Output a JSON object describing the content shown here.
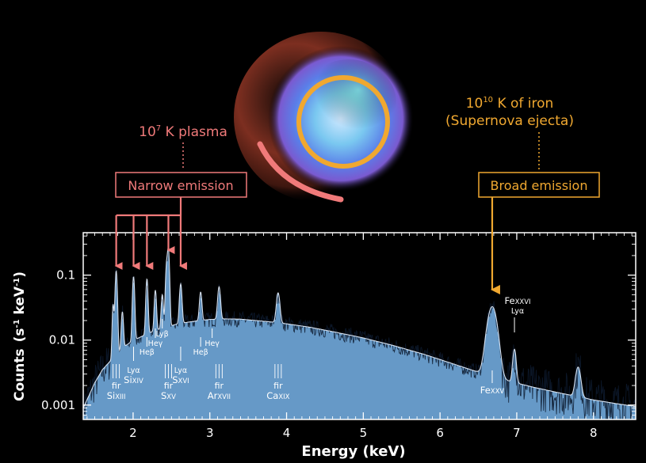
{
  "annotations": {
    "plasma_label": "10",
    "plasma_exp": "7",
    "plasma_rest": " K plasma",
    "iron_label": "10",
    "iron_exp": "10",
    "iron_rest": " K of iron",
    "iron_sub": "(Supernova ejecta)",
    "narrow_box": "Narrow emission",
    "broad_box": "Broad emission"
  },
  "colors": {
    "narrow": "#f07a7a",
    "broad": "#f0a830",
    "spectrum_fill": "#6fa6d8",
    "background": "#000000"
  },
  "chart_data": {
    "type": "area",
    "xlabel": "Energy (keV)",
    "ylabel_main": "Counts",
    "ylabel_units": "(s",
    "ylabel_units_exp1": "-1",
    "ylabel_units_mid": " keV",
    "ylabel_units_exp2": "-1",
    "ylabel_units_end": ")",
    "xlim": [
      1.35,
      8.55
    ],
    "ylim": [
      0.0006,
      0.45
    ],
    "yscale": "log",
    "x_ticks": [
      2,
      3,
      4,
      5,
      6,
      7,
      8
    ],
    "y_ticks": [
      {
        "value": 0.001,
        "label": "0.001"
      },
      {
        "value": 0.01,
        "label": "0.01"
      },
      {
        "value": 0.1,
        "label": "0.1"
      }
    ],
    "continuum": [
      [
        1.35,
        0.0009
      ],
      [
        1.5,
        0.0022
      ],
      [
        1.6,
        0.0035
      ],
      [
        1.75,
        0.0055
      ],
      [
        1.9,
        0.0082
      ],
      [
        2.0,
        0.0098
      ],
      [
        2.2,
        0.0128
      ],
      [
        2.4,
        0.0155
      ],
      [
        2.6,
        0.018
      ],
      [
        2.8,
        0.0195
      ],
      [
        3.0,
        0.0208
      ],
      [
        3.2,
        0.0212
      ],
      [
        3.4,
        0.021
      ],
      [
        3.6,
        0.02
      ],
      [
        3.8,
        0.019
      ],
      [
        4.0,
        0.0178
      ],
      [
        4.3,
        0.0158
      ],
      [
        4.6,
        0.0135
      ],
      [
        5.0,
        0.0108
      ],
      [
        5.4,
        0.0082
      ],
      [
        5.8,
        0.006
      ],
      [
        6.2,
        0.0042
      ],
      [
        6.5,
        0.0032
      ],
      [
        6.8,
        0.0025
      ],
      [
        7.2,
        0.0019
      ],
      [
        7.6,
        0.0015
      ],
      [
        8.0,
        0.0012
      ],
      [
        8.3,
        0.00105
      ],
      [
        8.55,
        0.00095
      ]
    ],
    "lines": [
      {
        "e": 1.74,
        "peak": 0.03,
        "w": 0.01
      },
      {
        "e": 1.78,
        "peak": 0.11,
        "w": 0.012
      },
      {
        "e": 1.86,
        "peak": 0.02,
        "w": 0.012
      },
      {
        "e": 2.006,
        "peak": 0.085,
        "w": 0.012
      },
      {
        "e": 2.18,
        "peak": 0.075,
        "w": 0.012
      },
      {
        "e": 2.29,
        "peak": 0.045,
        "w": 0.012
      },
      {
        "e": 2.38,
        "peak": 0.035,
        "w": 0.012
      },
      {
        "e": 2.435,
        "peak": 0.12,
        "w": 0.012
      },
      {
        "e": 2.46,
        "peak": 0.23,
        "w": 0.012
      },
      {
        "e": 2.62,
        "peak": 0.055,
        "w": 0.014
      },
      {
        "e": 2.88,
        "peak": 0.035,
        "w": 0.014
      },
      {
        "e": 3.12,
        "peak": 0.045,
        "w": 0.016
      },
      {
        "e": 3.89,
        "peak": 0.035,
        "w": 0.02
      },
      {
        "e": 6.68,
        "peak": 0.03,
        "w": 0.055
      },
      {
        "e": 6.97,
        "peak": 0.005,
        "w": 0.02
      },
      {
        "e": 7.8,
        "peak": 0.0025,
        "w": 0.03
      }
    ],
    "line_labels": [
      {
        "id": "si-xiii",
        "x": 1.78,
        "fir": true,
        "name": "Si",
        "ion": "XIII",
        "tier": "low"
      },
      {
        "id": "si-xiv",
        "x": 2.006,
        "tag": "Lyα",
        "name": "Si",
        "ion": "XIV",
        "tier": "mid"
      },
      {
        "id": "si-heb",
        "x": 2.18,
        "tag": "Heβ",
        "tier": "mid2"
      },
      {
        "id": "si-hey",
        "x": 2.29,
        "tag": "Heγ",
        "tier": "high"
      },
      {
        "id": "si-lyb",
        "x": 2.38,
        "tag": "Lyβ",
        "tier": "top"
      },
      {
        "id": "s-xv",
        "x": 2.46,
        "fir": true,
        "name": "S",
        "ion": "XV",
        "tier": "low"
      },
      {
        "id": "s-xvi",
        "x": 2.62,
        "tag": "Lyα",
        "name": "S",
        "ion": "XVI",
        "tier": "mid"
      },
      {
        "id": "s-heb",
        "x": 2.88,
        "tag": "Heβ",
        "tier": "mid2"
      },
      {
        "id": "s-hey",
        "x": 3.03,
        "tag": "Heγ",
        "tier": "high"
      },
      {
        "id": "ar-xvii",
        "x": 3.12,
        "fir": true,
        "name": "Ar",
        "ion": "XVII",
        "tier": "low"
      },
      {
        "id": "ca-xix",
        "x": 3.89,
        "fir": true,
        "name": "Ca",
        "ion": "XIX",
        "tier": "low"
      },
      {
        "id": "fe-xxv",
        "x": 6.68,
        "name": "Fe",
        "ion": "XXV",
        "tier": "low"
      },
      {
        "id": "fe-xxvi",
        "x": 6.97,
        "name": "Fe",
        "ion": "XXVI",
        "tag": "Lyα",
        "tier": "topright"
      }
    ],
    "fir_letters": "fir",
    "narrow_arrow_targets": [
      1.78,
      2.006,
      2.18,
      2.46,
      2.62
    ],
    "broad_arrow_target": 6.68
  }
}
